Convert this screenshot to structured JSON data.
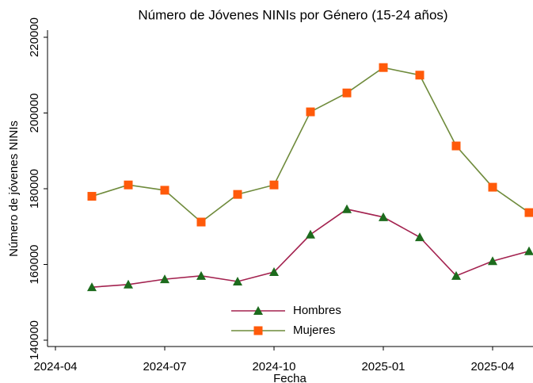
{
  "chart_data": {
    "type": "line",
    "title": "Número de Jóvenes NINIs por Género (15-24 años)",
    "x_label": "Fecha",
    "y_label": "Número de jóvenes NINIs",
    "x": [
      "2024-05",
      "2024-06",
      "2024-07",
      "2024-08",
      "2024-09",
      "2024-10",
      "2024-11",
      "2024-12",
      "2025-01",
      "2025-02",
      "2025-03",
      "2025-04",
      "2025-05"
    ],
    "series": [
      {
        "name": "Hombres",
        "color": "#a3224f",
        "marker": "triangle",
        "marker_color": "#1d6b1d",
        "values": [
          154000,
          154700,
          156100,
          157000,
          155500,
          158000,
          167900,
          174600,
          172500,
          167200,
          157000,
          160900,
          163500
        ]
      },
      {
        "name": "Mujeres",
        "color": "#6f8b3c",
        "marker": "square",
        "marker_color": "#ff5a0a",
        "values": [
          178000,
          181000,
          179600,
          171200,
          178500,
          181000,
          200300,
          205300,
          212000,
          210000,
          191300,
          180400,
          173700
        ]
      }
    ],
    "xlim": [
      "2024-04",
      "2025-05"
    ],
    "xticks": [
      "2024-04",
      "2024-07",
      "2024-10",
      "2025-01",
      "2025-04"
    ],
    "ylim": [
      140000,
      220000
    ],
    "yticks": [
      140000,
      160000,
      180000,
      200000,
      220000
    ],
    "grid": false,
    "legend": "bottom"
  }
}
